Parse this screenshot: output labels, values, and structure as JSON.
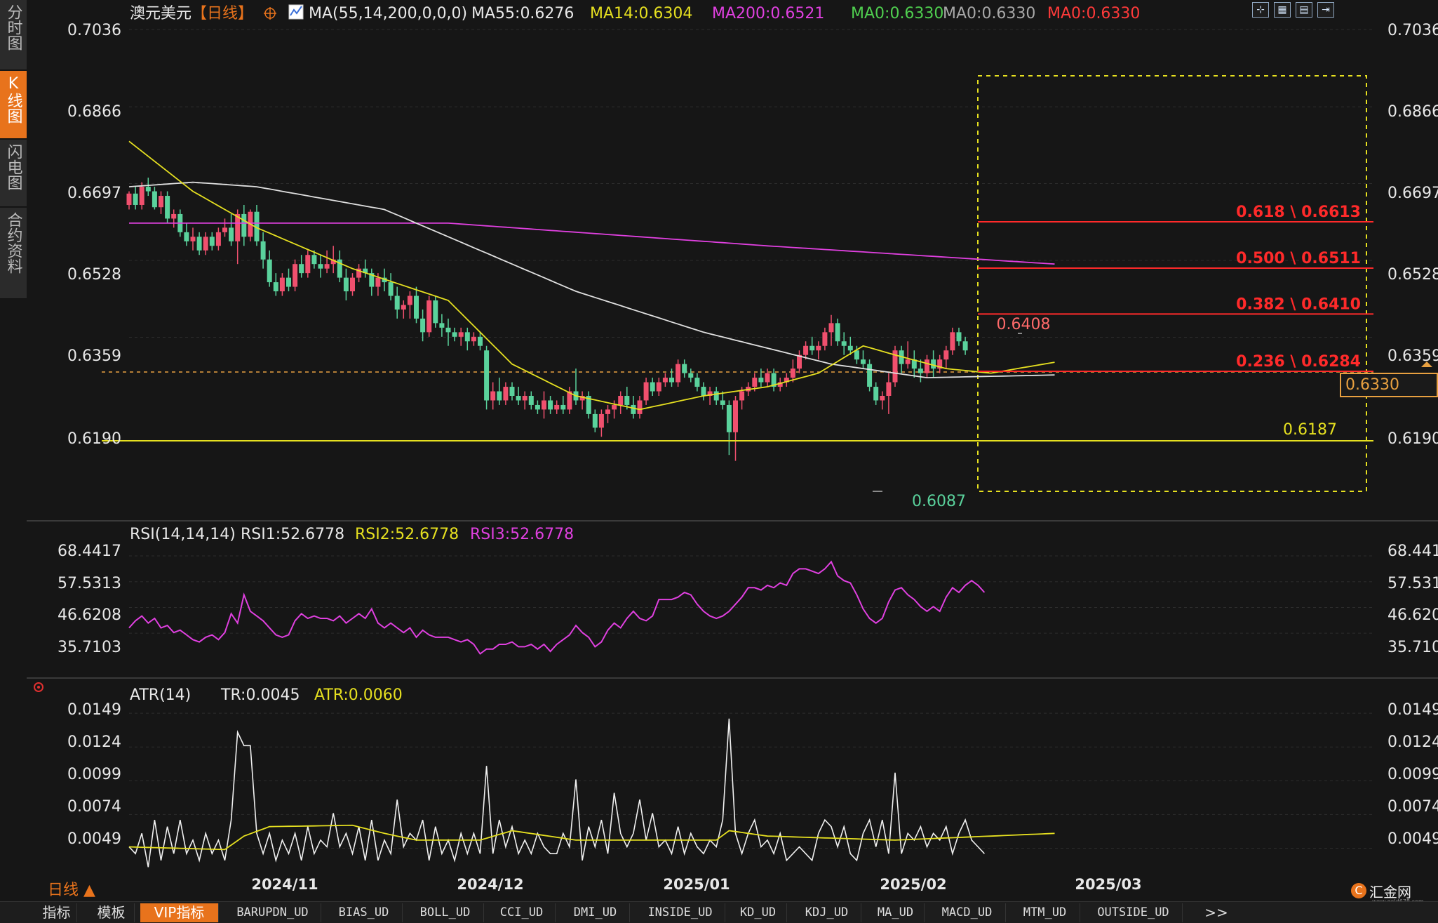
{
  "sidebar": {
    "items": [
      {
        "label": "分时图",
        "active": false
      },
      {
        "label": "K线图",
        "active": true
      },
      {
        "label": "闪电图",
        "active": false
      },
      {
        "label": "合约资料",
        "active": false
      }
    ]
  },
  "header": {
    "symbol": "澳元美元",
    "period": "【日线】",
    "ma_params": "MA(55,14,200,0,0,0)",
    "ma55": "MA55:0.6276",
    "ma14": "MA14:0.6304",
    "ma200": "MA200:0.6521",
    "ma0a": "MA0:0.6330",
    "ma0b": "MA0:0.6330",
    "ma0c": "MA0:0.6330"
  },
  "price_panel": {
    "y_ticks": [
      "0.7036",
      "0.6866",
      "0.6697",
      "0.6528",
      "0.6359",
      "0.6190"
    ],
    "current_price": "0.6330",
    "high_label": "0.6408",
    "low_label": "0.6087",
    "support_label": "0.6187",
    "fib_labels": [
      "0.618 \\ 0.6613",
      "0.500 \\ 0.6511",
      "0.382 \\ 0.6410",
      "0.236 \\ 0.6284"
    ]
  },
  "rsi_panel": {
    "title": "RSI(14,14,14)",
    "rsi1": "RSI1:52.6778",
    "rsi2": "RSI2:52.6778",
    "rsi3": "RSI3:52.6778",
    "y_ticks": [
      "68.4417",
      "57.5313",
      "46.6208",
      "35.7103"
    ]
  },
  "atr_panel": {
    "title": "ATR(14)",
    "tr": "TR:0.0045",
    "atr": "ATR:0.0060",
    "y_ticks": [
      "0.0149",
      "0.0124",
      "0.0099",
      "0.0074",
      "0.0049"
    ]
  },
  "x_axis": {
    "labels": [
      "2024/11",
      "2024/12",
      "2025/01",
      "2025/02",
      "2025/03"
    ]
  },
  "period_button": "日线 ▲",
  "bottom_tabs": [
    "指标",
    "模板",
    "VIP指标",
    "BARUPDN_UD",
    "BIAS_UD",
    "BOLL_UD",
    "CCI_UD",
    "DMI_UD",
    "INSIDE_UD",
    "KD_UD",
    "KDJ_UD",
    "MA_UD",
    "MACD_UD",
    "MTM_UD",
    "OUTSIDE_UD",
    ">>"
  ],
  "logo": {
    "text": "汇金网",
    "sub": "www.gold678.com"
  },
  "colors": {
    "up": "#f0506e",
    "down": "#5ad29c",
    "ma14": "#e6e020",
    "ma55": "#e0e0e0",
    "ma200": "#e040e0",
    "fib": "#ff2a2a",
    "support": "#ffee00",
    "accent": "#e8731c"
  },
  "chart_data": {
    "type": "candlestick",
    "instrument": "澳元美元",
    "period": "日线",
    "ylim": [
      0.602,
      0.7036
    ],
    "candles": [
      [
        0.665,
        0.668,
        0.664,
        0.6675
      ],
      [
        0.6675,
        0.669,
        0.664,
        0.665
      ],
      [
        0.665,
        0.67,
        0.664,
        0.669
      ],
      [
        0.669,
        0.671,
        0.667,
        0.668
      ],
      [
        0.668,
        0.669,
        0.664,
        0.6645
      ],
      [
        0.6645,
        0.668,
        0.663,
        0.667
      ],
      [
        0.667,
        0.668,
        0.661,
        0.662
      ],
      [
        0.662,
        0.664,
        0.66,
        0.663
      ],
      [
        0.663,
        0.664,
        0.658,
        0.659
      ],
      [
        0.659,
        0.661,
        0.656,
        0.657
      ],
      [
        0.657,
        0.66,
        0.655,
        0.658
      ],
      [
        0.658,
        0.659,
        0.654,
        0.655
      ],
      [
        0.655,
        0.659,
        0.654,
        0.658
      ],
      [
        0.658,
        0.659,
        0.655,
        0.656
      ],
      [
        0.656,
        0.66,
        0.655,
        0.659
      ],
      [
        0.659,
        0.662,
        0.658,
        0.66
      ],
      [
        0.66,
        0.663,
        0.656,
        0.657
      ],
      [
        0.657,
        0.664,
        0.652,
        0.663
      ],
      [
        0.663,
        0.665,
        0.656,
        0.658
      ],
      [
        0.658,
        0.664,
        0.657,
        0.6635
      ],
      [
        0.6635,
        0.665,
        0.656,
        0.657
      ],
      [
        0.657,
        0.659,
        0.651,
        0.653
      ],
      [
        0.653,
        0.655,
        0.647,
        0.648
      ],
      [
        0.648,
        0.65,
        0.645,
        0.646
      ],
      [
        0.646,
        0.65,
        0.645,
        0.649
      ],
      [
        0.649,
        0.651,
        0.646,
        0.647
      ],
      [
        0.647,
        0.653,
        0.646,
        0.652
      ],
      [
        0.652,
        0.654,
        0.649,
        0.65
      ],
      [
        0.65,
        0.655,
        0.649,
        0.654
      ],
      [
        0.654,
        0.655,
        0.651,
        0.652
      ],
      [
        0.652,
        0.654,
        0.649,
        0.651
      ],
      [
        0.651,
        0.655,
        0.65,
        0.652
      ],
      [
        0.652,
        0.656,
        0.65,
        0.653
      ],
      [
        0.653,
        0.655,
        0.648,
        0.649
      ],
      [
        0.649,
        0.651,
        0.644,
        0.646
      ],
      [
        0.646,
        0.65,
        0.645,
        0.649
      ],
      [
        0.649,
        0.652,
        0.648,
        0.651
      ],
      [
        0.651,
        0.653,
        0.649,
        0.65
      ],
      [
        0.65,
        0.651,
        0.645,
        0.647
      ],
      [
        0.647,
        0.65,
        0.645,
        0.649
      ],
      [
        0.649,
        0.651,
        0.646,
        0.648
      ],
      [
        0.648,
        0.65,
        0.644,
        0.645
      ],
      [
        0.645,
        0.647,
        0.64,
        0.642
      ],
      [
        0.642,
        0.644,
        0.64,
        0.643
      ],
      [
        0.643,
        0.646,
        0.64,
        0.645
      ],
      [
        0.645,
        0.647,
        0.639,
        0.64
      ],
      [
        0.64,
        0.642,
        0.635,
        0.637
      ],
      [
        0.637,
        0.645,
        0.636,
        0.644
      ],
      [
        0.644,
        0.645,
        0.638,
        0.639
      ],
      [
        0.639,
        0.641,
        0.636,
        0.638
      ],
      [
        0.638,
        0.64,
        0.634,
        0.637
      ],
      [
        0.637,
        0.638,
        0.635,
        0.636
      ],
      [
        0.636,
        0.638,
        0.634,
        0.637
      ],
      [
        0.637,
        0.638,
        0.633,
        0.635
      ],
      [
        0.635,
        0.637,
        0.634,
        0.636
      ],
      [
        0.636,
        0.637,
        0.633,
        0.634
      ],
      [
        0.633,
        0.634,
        0.62,
        0.622
      ],
      [
        0.622,
        0.626,
        0.62,
        0.624
      ],
      [
        0.624,
        0.627,
        0.621,
        0.622
      ],
      [
        0.622,
        0.626,
        0.621,
        0.625
      ],
      [
        0.625,
        0.626,
        0.622,
        0.623
      ],
      [
        0.623,
        0.625,
        0.621,
        0.622
      ],
      [
        0.622,
        0.624,
        0.62,
        0.623
      ],
      [
        0.623,
        0.624,
        0.62,
        0.621
      ],
      [
        0.621,
        0.622,
        0.619,
        0.62
      ],
      [
        0.62,
        0.624,
        0.618,
        0.622
      ],
      [
        0.622,
        0.623,
        0.619,
        0.62
      ],
      [
        0.62,
        0.622,
        0.619,
        0.621
      ],
      [
        0.621,
        0.623,
        0.619,
        0.62
      ],
      [
        0.62,
        0.625,
        0.619,
        0.624
      ],
      [
        0.624,
        0.629,
        0.621,
        0.622
      ],
      [
        0.622,
        0.624,
        0.62,
        0.623
      ],
      [
        0.623,
        0.624,
        0.618,
        0.619
      ],
      [
        0.619,
        0.62,
        0.615,
        0.616
      ],
      [
        0.616,
        0.62,
        0.614,
        0.619
      ],
      [
        0.619,
        0.621,
        0.617,
        0.62
      ],
      [
        0.62,
        0.622,
        0.618,
        0.621
      ],
      [
        0.621,
        0.624,
        0.619,
        0.623
      ],
      [
        0.623,
        0.625,
        0.62,
        0.621
      ],
      [
        0.621,
        0.623,
        0.618,
        0.619
      ],
      [
        0.619,
        0.623,
        0.618,
        0.622
      ],
      [
        0.622,
        0.627,
        0.621,
        0.626
      ],
      [
        0.626,
        0.627,
        0.623,
        0.624
      ],
      [
        0.624,
        0.627,
        0.623,
        0.626
      ],
      [
        0.626,
        0.628,
        0.625,
        0.627
      ],
      [
        0.627,
        0.629,
        0.625,
        0.626
      ],
      [
        0.626,
        0.631,
        0.625,
        0.63
      ],
      [
        0.63,
        0.631,
        0.627,
        0.628
      ],
      [
        0.628,
        0.629,
        0.626,
        0.627
      ],
      [
        0.627,
        0.628,
        0.624,
        0.625
      ],
      [
        0.625,
        0.626,
        0.622,
        0.623
      ],
      [
        0.623,
        0.625,
        0.621,
        0.624
      ],
      [
        0.624,
        0.625,
        0.621,
        0.622
      ],
      [
        0.622,
        0.624,
        0.62,
        0.621
      ],
      [
        0.621,
        0.622,
        0.61,
        0.615
      ],
      [
        0.615,
        0.623,
        0.6087,
        0.622
      ],
      [
        0.622,
        0.625,
        0.62,
        0.624
      ],
      [
        0.624,
        0.626,
        0.623,
        0.625
      ],
      [
        0.625,
        0.628,
        0.624,
        0.627
      ],
      [
        0.627,
        0.629,
        0.625,
        0.626
      ],
      [
        0.626,
        0.629,
        0.625,
        0.628
      ],
      [
        0.628,
        0.629,
        0.624,
        0.625
      ],
      [
        0.625,
        0.627,
        0.624,
        0.626
      ],
      [
        0.626,
        0.628,
        0.625,
        0.627
      ],
      [
        0.627,
        0.631,
        0.626,
        0.629
      ],
      [
        0.629,
        0.633,
        0.628,
        0.632
      ],
      [
        0.632,
        0.635,
        0.631,
        0.634
      ],
      [
        0.634,
        0.636,
        0.632,
        0.633
      ],
      [
        0.633,
        0.635,
        0.631,
        0.634
      ],
      [
        0.634,
        0.638,
        0.633,
        0.637
      ],
      [
        0.637,
        0.6408,
        0.634,
        0.639
      ],
      [
        0.639,
        0.64,
        0.634,
        0.635
      ],
      [
        0.635,
        0.637,
        0.632,
        0.634
      ],
      [
        0.634,
        0.636,
        0.632,
        0.633
      ],
      [
        0.633,
        0.634,
        0.63,
        0.631
      ],
      [
        0.631,
        0.633,
        0.629,
        0.63
      ],
      [
        0.63,
        0.631,
        0.624,
        0.625
      ],
      [
        0.625,
        0.626,
        0.621,
        0.622
      ],
      [
        0.622,
        0.624,
        0.62,
        0.623
      ],
      [
        0.623,
        0.628,
        0.619,
        0.626
      ],
      [
        0.626,
        0.634,
        0.625,
        0.633
      ],
      [
        0.633,
        0.634,
        0.628,
        0.63
      ],
      [
        0.63,
        0.635,
        0.629,
        0.631
      ],
      [
        0.631,
        0.633,
        0.627,
        0.629
      ],
      [
        0.629,
        0.631,
        0.626,
        0.628
      ],
      [
        0.628,
        0.632,
        0.627,
        0.631
      ],
      [
        0.631,
        0.633,
        0.627,
        0.629
      ],
      [
        0.629,
        0.632,
        0.628,
        0.631
      ],
      [
        0.631,
        0.634,
        0.629,
        0.633
      ],
      [
        0.633,
        0.638,
        0.632,
        0.637
      ],
      [
        0.637,
        0.638,
        0.634,
        0.635
      ],
      [
        0.635,
        0.636,
        0.632,
        0.633
      ]
    ],
    "fib_levels": [
      {
        "ratio": 0.618,
        "price": 0.6613
      },
      {
        "ratio": 0.5,
        "price": 0.6511
      },
      {
        "ratio": 0.382,
        "price": 0.641
      },
      {
        "ratio": 0.236,
        "price": 0.6284
      }
    ],
    "fib_range": {
      "start_index": 109,
      "high": 0.6408,
      "low": 0.6087
    },
    "support": 0.6187,
    "current_price": 0.633,
    "ma200": [
      [
        0,
        0.661
      ],
      [
        50,
        0.661
      ],
      [
        100,
        0.656
      ],
      [
        145,
        0.652
      ]
    ],
    "ma55": [
      [
        0,
        0.669
      ],
      [
        10,
        0.67
      ],
      [
        20,
        0.669
      ],
      [
        40,
        0.664
      ],
      [
        55,
        0.655
      ],
      [
        70,
        0.646
      ],
      [
        90,
        0.637
      ],
      [
        110,
        0.63
      ],
      [
        125,
        0.627
      ],
      [
        145,
        0.6276
      ]
    ],
    "ma14": [
      [
        0,
        0.679
      ],
      [
        10,
        0.668
      ],
      [
        20,
        0.66
      ],
      [
        35,
        0.651
      ],
      [
        50,
        0.644
      ],
      [
        60,
        0.63
      ],
      [
        70,
        0.623
      ],
      [
        80,
        0.62
      ],
      [
        90,
        0.623
      ],
      [
        100,
        0.625
      ],
      [
        108,
        0.628
      ],
      [
        115,
        0.634
      ],
      [
        120,
        0.632
      ],
      [
        128,
        0.629
      ],
      [
        135,
        0.628
      ],
      [
        145,
        0.6304
      ]
    ],
    "rsi": {
      "ylim": [
        20,
        75
      ],
      "values": [
        38,
        41,
        43,
        40,
        42,
        38,
        39,
        36,
        37,
        35,
        33,
        32,
        34,
        35,
        33,
        36,
        44,
        40,
        52,
        45,
        43,
        41,
        38,
        35,
        34,
        35,
        41,
        44,
        42,
        43,
        42,
        42,
        41,
        43,
        40,
        42,
        44,
        42,
        46,
        40,
        38,
        40,
        38,
        36,
        38,
        34,
        37,
        35,
        34,
        34,
        34,
        33,
        32,
        33,
        31,
        27,
        29,
        29,
        31,
        31,
        32,
        30,
        30,
        31,
        29,
        31,
        28,
        31,
        33,
        35,
        39,
        36,
        34,
        30,
        32,
        37,
        40,
        38,
        42,
        45,
        42,
        41,
        43,
        50,
        50,
        50,
        51,
        53,
        52,
        48,
        45,
        43,
        42,
        43,
        45,
        48,
        51,
        55,
        55,
        54,
        56,
        55,
        57,
        56,
        61,
        63,
        63,
        62,
        61,
        63,
        66,
        60,
        58,
        57,
        52,
        46,
        42,
        40,
        42,
        49,
        54,
        55,
        52,
        50,
        47,
        45,
        47,
        45,
        51,
        55,
        53,
        56,
        58,
        56,
        53
      ],
      "series": [
        {
          "name": "RSI1",
          "value": 52.6778
        },
        {
          "name": "RSI2",
          "value": 52.6778
        },
        {
          "name": "RSI3",
          "value": 52.6778
        }
      ]
    },
    "atr": {
      "ylim": [
        0.003,
        0.016
      ],
      "tr": [
        0.005,
        0.0045,
        0.006,
        0.0035,
        0.007,
        0.004,
        0.0065,
        0.0045,
        0.007,
        0.0045,
        0.0055,
        0.004,
        0.006,
        0.0045,
        0.0055,
        0.004,
        0.007,
        0.0135,
        0.0125,
        0.0125,
        0.006,
        0.0045,
        0.006,
        0.004,
        0.0055,
        0.0045,
        0.006,
        0.004,
        0.0065,
        0.0045,
        0.0055,
        0.005,
        0.0075,
        0.005,
        0.006,
        0.0045,
        0.0065,
        0.004,
        0.007,
        0.004,
        0.0055,
        0.0045,
        0.0085,
        0.005,
        0.006,
        0.0055,
        0.007,
        0.004,
        0.0065,
        0.0045,
        0.0055,
        0.004,
        0.006,
        0.0045,
        0.006,
        0.0045,
        0.011,
        0.0045,
        0.007,
        0.005,
        0.0065,
        0.0045,
        0.0055,
        0.0045,
        0.006,
        0.005,
        0.0045,
        0.0045,
        0.006,
        0.005,
        0.01,
        0.004,
        0.0065,
        0.005,
        0.007,
        0.0045,
        0.009,
        0.006,
        0.005,
        0.006,
        0.0085,
        0.0055,
        0.0075,
        0.005,
        0.0055,
        0.0045,
        0.0065,
        0.0045,
        0.006,
        0.005,
        0.0045,
        0.0055,
        0.005,
        0.007,
        0.0145,
        0.006,
        0.0045,
        0.006,
        0.007,
        0.005,
        0.0055,
        0.0045,
        0.006,
        0.004,
        0.0045,
        0.005,
        0.0045,
        0.004,
        0.006,
        0.007,
        0.0065,
        0.005,
        0.0065,
        0.0045,
        0.004,
        0.006,
        0.007,
        0.005,
        0.007,
        0.0045,
        0.0105,
        0.0045,
        0.006,
        0.0055,
        0.0065,
        0.005,
        0.006,
        0.0055,
        0.0065,
        0.0045,
        0.006,
        0.007,
        0.0055,
        0.005,
        0.0045
      ],
      "atr": [
        [
          0,
          0.005
        ],
        [
          15,
          0.0048
        ],
        [
          18,
          0.0058
        ],
        [
          22,
          0.0065
        ],
        [
          35,
          0.0066
        ],
        [
          40,
          0.006
        ],
        [
          45,
          0.0055
        ],
        [
          55,
          0.0055
        ],
        [
          60,
          0.0062
        ],
        [
          70,
          0.0055
        ],
        [
          80,
          0.0055
        ],
        [
          92,
          0.0055
        ],
        [
          94,
          0.0062
        ],
        [
          100,
          0.0058
        ],
        [
          120,
          0.0055
        ],
        [
          145,
          0.006
        ]
      ],
      "current_tr": 0.0045,
      "current_atr": 0.006
    }
  }
}
